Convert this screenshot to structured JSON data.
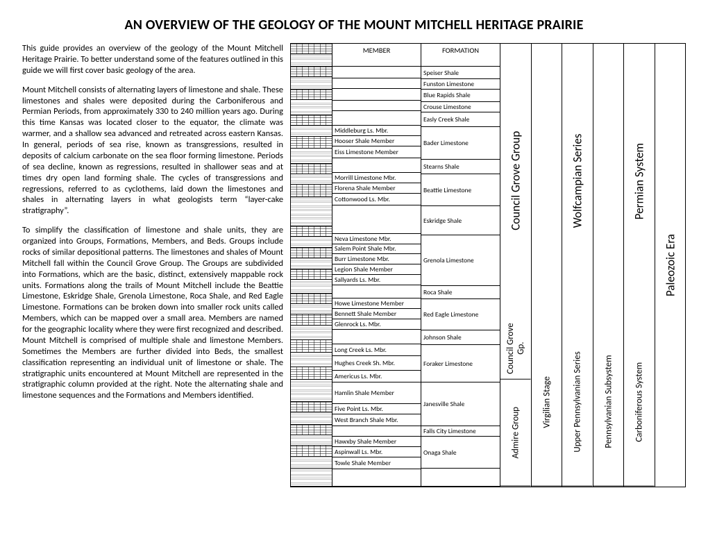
{
  "title": "AN OVERVIEW OF THE GEOLOGY OF THE MOUNT MITCHELL HERITAGE PRAIRIE",
  "paragraphs": [
    "This guide provides an overview of the geology of the Mount Mitchell Heritage Prairie. To better understand some of the features outlined in this guide we will first cover basic geology of the area.",
    "Mount Mitchell consists of alternating layers of limestone and shale. These limestones and shales were deposited during the Carboniferous and Permian Periods, from approximately 330 to 240 million years ago. During this time Kansas was located closer to the equator, the climate was warmer, and a shallow sea advanced and retreated across eastern Kansas. In general, periods of sea rise, known as transgressions, resulted in deposits of calcium carbonate on the sea floor forming limestone. Periods of sea decline, known as regressions, resulted in shallower seas and at times dry open land forming shale. The cycles of transgressions and regressions, referred to as cyclothems, laid down the limestones and shales in alternating layers in what geologists term “layer-cake stratigraphy”.",
    "To simplify the classification of limestone and shale units, they are organized into Groups, Formations, Members, and Beds. Groups include rocks of similar depositional patterns. The limestones and shales of Mount Mitchell fall within the Council Grove Group. The Groups are subdivided into Formations, which are the basic, distinct, extensively mappable rock units. Formations along the trails of Mount Mitchell include the Beattie Limestone, Eskridge Shale, Grenola Limestone, Roca Shale, and Red Eagle Limestone. Formations can be broken down into smaller rock units called Members, which can be mapped over a small area. Members are named for the geographic locality where they were first recognized and described. Mount Mitchell is comprised of multiple shale and limestone Members. Sometimes the Members are further divided into Beds, the smallest classification representing an individual unit of limestone or shale. The stratigraphic units encountered at Mount Mitchell are represented in the stratigraphic column provided at the right. Note the alternating shale and limestone sequences and the Formations and Members identified."
  ],
  "column_headers": {
    "member": "MEMBER",
    "formation": "FORMATION"
  },
  "members": [
    {
      "label": "",
      "litho": "ls",
      "flex": 0.7
    },
    {
      "label": "",
      "litho": "sh",
      "flex": 0.8
    },
    {
      "label": "",
      "litho": "ls",
      "flex": 0.7
    },
    {
      "label": "",
      "litho": "sh",
      "flex": 0.8
    },
    {
      "label": "",
      "litho": "ls",
      "flex": 0.7
    },
    {
      "label": "",
      "litho": "sh",
      "flex": 1.0
    },
    {
      "label": "Middleburg Ls. Mbr.",
      "litho": "ls",
      "flex": 0.7
    },
    {
      "label": "Hooser Shale Member",
      "litho": "sh",
      "flex": 0.7
    },
    {
      "label": "Eiss Limestone Member",
      "litho": "ls",
      "flex": 0.8
    },
    {
      "label": "",
      "litho": "sh",
      "flex": 1.0
    },
    {
      "label": "Morrill Limestone Mbr.",
      "litho": "ls",
      "flex": 0.7
    },
    {
      "label": "Florena Shale Member",
      "litho": "sh",
      "flex": 0.7
    },
    {
      "label": "Cottonwood Ls. Mbr.",
      "litho": "ls",
      "flex": 0.8
    },
    {
      "label": "",
      "litho": "sh",
      "flex": 2.0
    },
    {
      "label": "Neva Limestone Mbr.",
      "litho": "ls",
      "flex": 0.7
    },
    {
      "label": "Salem Point Shale Mbr.",
      "litho": "sh",
      "flex": 0.7
    },
    {
      "label": "Burr Limestone Mbr.",
      "litho": "ls",
      "flex": 0.7
    },
    {
      "label": "Legion Shale Member",
      "litho": "sh",
      "flex": 0.7
    },
    {
      "label": "Sallyards Ls. Mbr.",
      "litho": "ls",
      "flex": 0.7
    },
    {
      "label": "",
      "litho": "sh",
      "flex": 0.9
    },
    {
      "label": "Howe Limestone Member",
      "litho": "ls",
      "flex": 0.7
    },
    {
      "label": "Bennett Shale Member",
      "litho": "sh",
      "flex": 0.7
    },
    {
      "label": "Glenrock Ls. Mbr.",
      "litho": "ls",
      "flex": 0.7
    },
    {
      "label": "",
      "litho": "sh",
      "flex": 1.0
    },
    {
      "label": "Long Creek Ls. Mbr.",
      "litho": "ls",
      "flex": 0.8
    },
    {
      "label": "Hughes Creek Sh. Mbr.",
      "litho": "sh",
      "flex": 1.0
    },
    {
      "label": "Americus Ls. Mbr.",
      "litho": "ls",
      "flex": 0.8
    },
    {
      "label": "Hamlin Shale Member",
      "litho": "sh",
      "flex": 1.5
    },
    {
      "label": "Five Point Ls. Mbr.",
      "litho": "ls",
      "flex": 0.7
    },
    {
      "label": "West Branch Shale Mbr.",
      "litho": "sh",
      "flex": 0.8
    },
    {
      "label": "",
      "litho": "ls",
      "flex": 0.7
    },
    {
      "label": "Hawxby Shale Member",
      "litho": "sh",
      "flex": 0.7
    },
    {
      "label": "Aspinwall Ls. Mbr.",
      "litho": "ls",
      "flex": 0.7
    },
    {
      "label": "Towle Shale Member",
      "litho": "sh",
      "flex": 0.8
    },
    {
      "label": "",
      "litho": "sh",
      "flex": 1.2
    }
  ],
  "formations": [
    {
      "label": "",
      "flex": 0.7
    },
    {
      "label": "Speiser Shale",
      "flex": 0.8
    },
    {
      "label": "Funston Limestone",
      "flex": 0.7
    },
    {
      "label": "Blue Rapids Shale",
      "flex": 0.8
    },
    {
      "label": "Crouse Limestone",
      "flex": 0.7
    },
    {
      "label": "Easly Creek Shale",
      "flex": 1.0
    },
    {
      "label": "Bader Limestone",
      "flex": 2.2
    },
    {
      "label": "Stearns Shale",
      "flex": 1.0
    },
    {
      "label": "Beattie Limestone",
      "flex": 2.2
    },
    {
      "label": "Eskridge Shale",
      "flex": 2.0
    },
    {
      "label": "Grenola Limestone",
      "flex": 3.5
    },
    {
      "label": "Roca Shale",
      "flex": 0.9
    },
    {
      "label": "Red Eagle Limestone",
      "flex": 2.1
    },
    {
      "label": "Johnson Shale",
      "flex": 1.0
    },
    {
      "label": "Foraker Limestone",
      "flex": 2.6
    },
    {
      "label": "Janesville Shale",
      "flex": 3.0
    },
    {
      "label": "Falls City Limestone",
      "flex": 0.7
    },
    {
      "label": "Onaga Shale",
      "flex": 2.2
    },
    {
      "label": "",
      "flex": 1.2
    }
  ],
  "side_columns": [
    {
      "labels": [
        {
          "text": "Council Grove Group",
          "flex": 18,
          "size": "big"
        },
        {
          "text": "Council Grove Gp.",
          "flex": 4
        },
        {
          "text": "Admire Group",
          "flex": 7
        }
      ]
    },
    {
      "labels": [
        {
          "text": "",
          "flex": 18
        },
        {
          "text": "Virgilian Stage",
          "flex": 11
        }
      ]
    },
    {
      "labels": [
        {
          "text": "Wolfcampian Series",
          "flex": 18,
          "size": "big"
        },
        {
          "text": "Upper Pennsylvanian Series",
          "flex": 11
        }
      ]
    },
    {
      "labels": [
        {
          "text": "",
          "flex": 18
        },
        {
          "text": "Pennsylvanian Subsystem",
          "flex": 11
        }
      ]
    },
    {
      "labels": [
        {
          "text": "Permian System",
          "flex": 18,
          "size": "big"
        },
        {
          "text": "Carboniferous System",
          "flex": 11
        }
      ]
    },
    {
      "labels": [
        {
          "text": "Paleozoic Era",
          "flex": 29,
          "size": "big"
        }
      ]
    }
  ]
}
